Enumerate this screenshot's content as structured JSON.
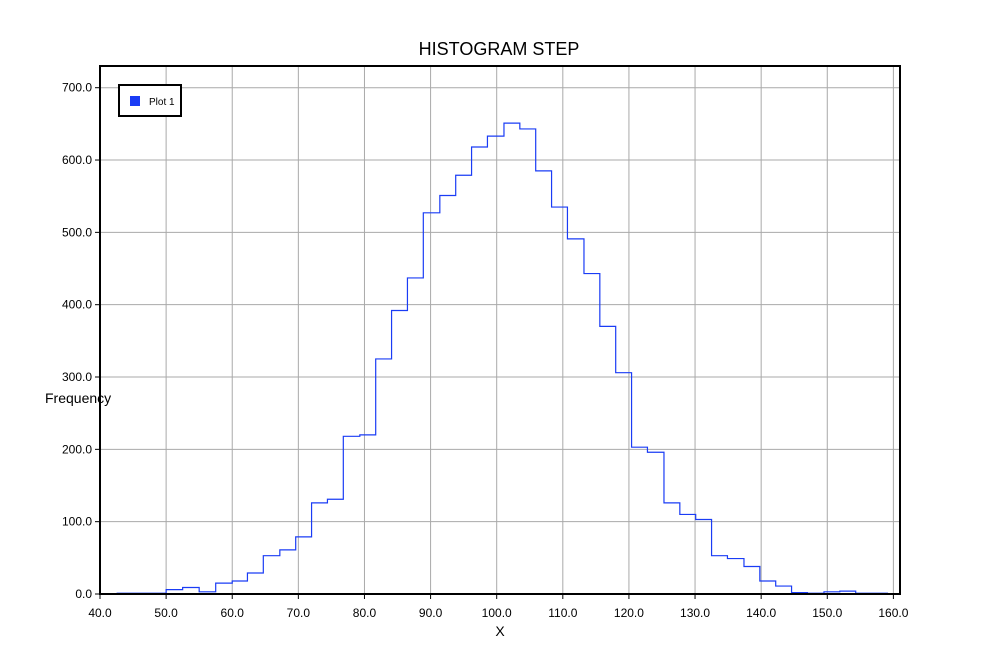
{
  "chart_data": {
    "type": "line",
    "style": "histogram-step",
    "title": "HISTOGRAM STEP",
    "xlabel": "X",
    "ylabel": "Frequency",
    "xlim": [
      40,
      161
    ],
    "ylim": [
      0,
      730
    ],
    "xticks": [
      40,
      50,
      60,
      70,
      80,
      90,
      100,
      110,
      120,
      130,
      140,
      150,
      160
    ],
    "yticks": [
      0,
      100,
      200,
      300,
      400,
      500,
      600,
      700
    ],
    "xtick_labels": [
      "40.0",
      "50.0",
      "60.0",
      "70.0",
      "80.0",
      "90.0",
      "100.0",
      "110.0",
      "120.0",
      "130.0",
      "140.0",
      "150.0",
      "160.0"
    ],
    "ytick_labels": [
      "0.0",
      "100.0",
      "200.0",
      "300.0",
      "400.0",
      "500.0",
      "600.0",
      "700.0"
    ],
    "grid": true,
    "legend": "top-left",
    "series": [
      {
        "name": "Plot 1",
        "color": "#1a3cf5",
        "bin_edges": [
          42.6,
          45.0,
          47.5,
          50.0,
          52.5,
          55.0,
          57.5,
          60.0,
          62.3,
          64.7,
          67.2,
          69.6,
          72.0,
          74.4,
          76.8,
          79.3,
          81.7,
          84.1,
          86.5,
          88.9,
          91.4,
          93.8,
          96.2,
          98.6,
          101.1,
          103.5,
          105.9,
          108.3,
          110.7,
          113.2,
          115.6,
          118.0,
          120.4,
          122.8,
          125.3,
          127.7,
          130.1,
          132.5,
          134.9,
          137.4,
          139.8,
          142.2,
          144.6,
          147.0,
          149.5,
          151.9,
          154.3,
          156.7,
          159.1
        ],
        "values": [
          1,
          1,
          1,
          6,
          9,
          3,
          15,
          18,
          29,
          53,
          61,
          79,
          126,
          131,
          218,
          220,
          325,
          392,
          437,
          527,
          551,
          579,
          618,
          633,
          651,
          643,
          585,
          535,
          491,
          443,
          370,
          306,
          203,
          196,
          126,
          110,
          103,
          53,
          49,
          38,
          18,
          11,
          2,
          1,
          3,
          4,
          1,
          1
        ]
      }
    ]
  }
}
